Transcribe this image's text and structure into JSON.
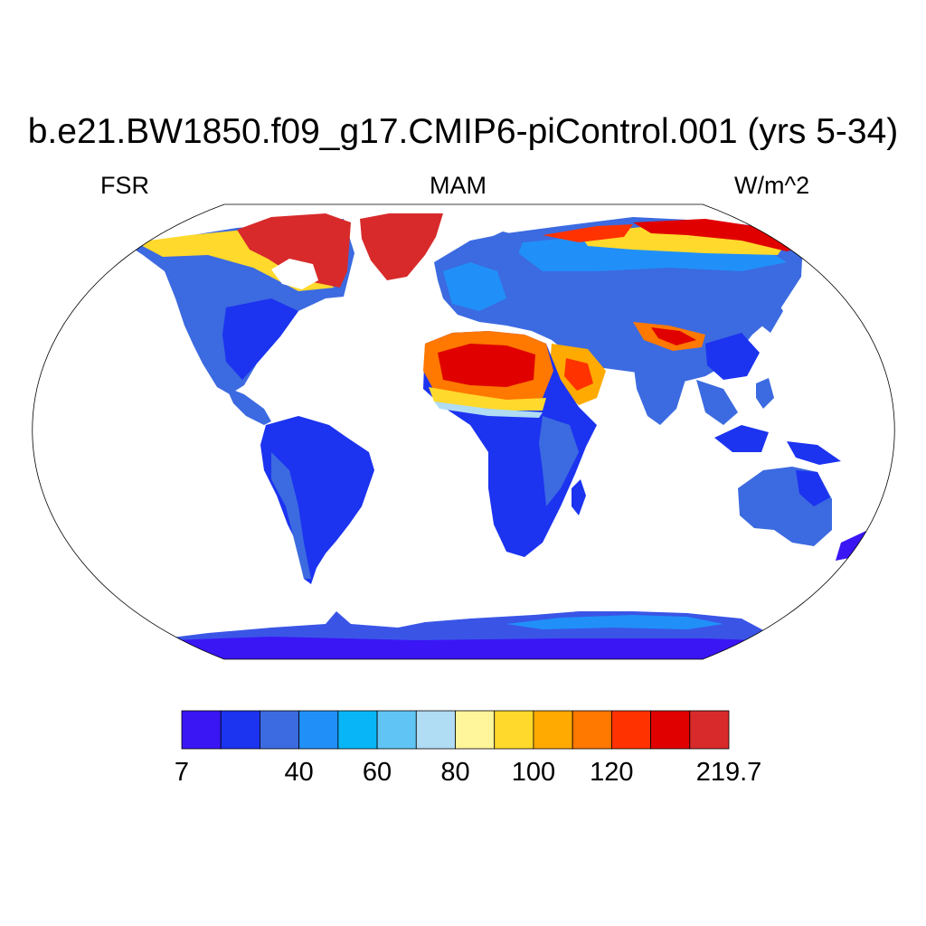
{
  "title": "b.e21.BW1850.f09_g17.CMIP6-piControl.001 (yrs 5-34)",
  "left_string": "FSR",
  "center_string": "MAM",
  "right_string": "W/m^2",
  "colorbar": {
    "colors": [
      "#3a16f5",
      "#1c33f0",
      "#3c6ae0",
      "#2090f8",
      "#08b6f8",
      "#60c4f4",
      "#b0dcf4",
      "#fff59a",
      "#ffd92c",
      "#ffaa00",
      "#ff7800",
      "#ff3200",
      "#e00000",
      "#d82a2a"
    ],
    "labels": [
      {
        "text": "7",
        "edge": 0
      },
      {
        "text": "40",
        "edge": 3
      },
      {
        "text": "60",
        "edge": 5
      },
      {
        "text": "80",
        "edge": 7
      },
      {
        "text": "100",
        "edge": 9
      },
      {
        "text": "120",
        "edge": 11
      },
      {
        "text": "219.7",
        "edge": 14
      }
    ]
  }
}
